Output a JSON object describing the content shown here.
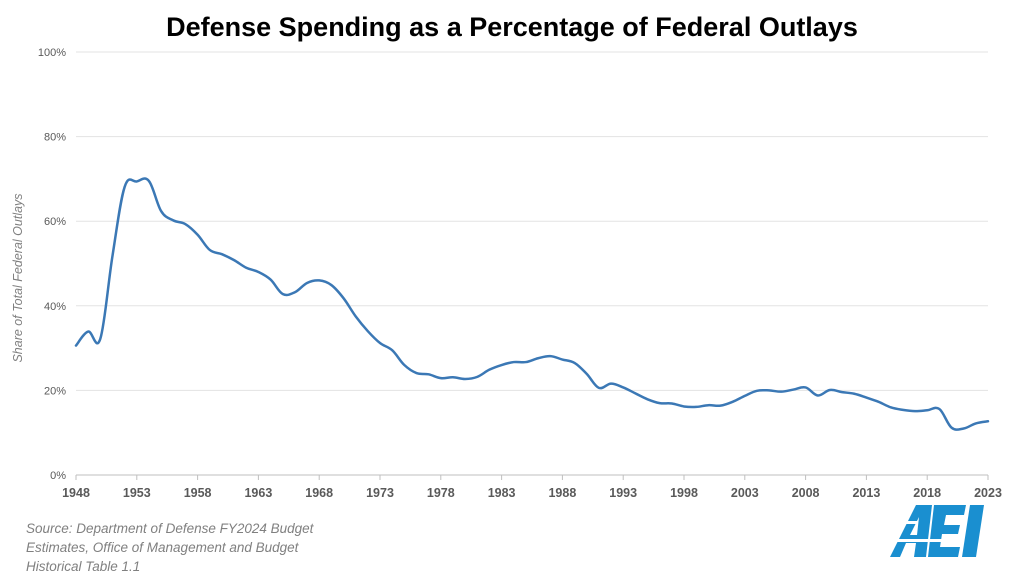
{
  "chart_data": {
    "type": "line",
    "title": "Defense Spending as a Percentage of Federal Outlays",
    "ylabel": "Share of Total Federal Outlays",
    "xlabel": "",
    "xlim": [
      1948,
      2023
    ],
    "ylim": [
      0,
      100
    ],
    "y_ticks": [
      "0%",
      "20%",
      "40%",
      "60%",
      "80%",
      "100%"
    ],
    "x_ticks": [
      "1948",
      "1953",
      "1958",
      "1963",
      "1968",
      "1973",
      "1978",
      "1983",
      "1988",
      "1993",
      "1998",
      "2003",
      "2008",
      "2013",
      "2018",
      "2023"
    ],
    "grid": "horizontal",
    "series_color": "#3b78b5",
    "series": [
      {
        "x": [
          1948,
          1949,
          1950,
          1951,
          1952,
          1953,
          1954,
          1955,
          1956,
          1957,
          1958,
          1959,
          1960,
          1961,
          1962,
          1963,
          1964,
          1965,
          1966,
          1967,
          1968,
          1969,
          1970,
          1971,
          1972,
          1973,
          1974,
          1975,
          1976,
          1977,
          1978,
          1979,
          1980,
          1981,
          1982,
          1983,
          1984,
          1985,
          1986,
          1987,
          1988,
          1989,
          1990,
          1991,
          1992,
          1993,
          1994,
          1995,
          1996,
          1997,
          1998,
          1999,
          2000,
          2001,
          2002,
          2003,
          2004,
          2005,
          2006,
          2007,
          2008,
          2009,
          2010,
          2011,
          2012,
          2013,
          2014,
          2015,
          2016,
          2017,
          2018,
          2019,
          2020,
          2021,
          2022,
          2023
        ],
        "values": [
          30.6,
          33.9,
          32.2,
          51.8,
          68.1,
          69.4,
          69.5,
          62.4,
          60.2,
          59.3,
          56.8,
          53.2,
          52.2,
          50.8,
          49.0,
          48.0,
          46.2,
          42.8,
          43.2,
          45.4,
          46.0,
          44.9,
          41.8,
          37.5,
          34.0,
          31.2,
          29.5,
          26.0,
          24.1,
          23.8,
          22.9,
          23.1,
          22.7,
          23.2,
          24.9,
          26.0,
          26.7,
          26.7,
          27.6,
          28.1,
          27.3,
          26.5,
          23.9,
          20.6,
          21.6,
          20.7,
          19.3,
          17.9,
          17.0,
          16.9,
          16.2,
          16.1,
          16.5,
          16.4,
          17.3,
          18.7,
          19.9,
          20.0,
          19.7,
          20.2,
          20.7,
          18.8,
          20.1,
          19.6,
          19.2,
          18.3,
          17.3,
          16.0,
          15.4,
          15.1,
          15.3,
          15.6,
          11.2,
          11.0,
          12.2,
          12.7
        ]
      }
    ]
  },
  "source_lines": [
    "Source: Department of Defense FY2024 Budget",
    "Estimates, Office of Management and Budget",
    "Historical Table 1.1"
  ],
  "logo_text": "AEI",
  "logo_color": "#1a8fd0"
}
